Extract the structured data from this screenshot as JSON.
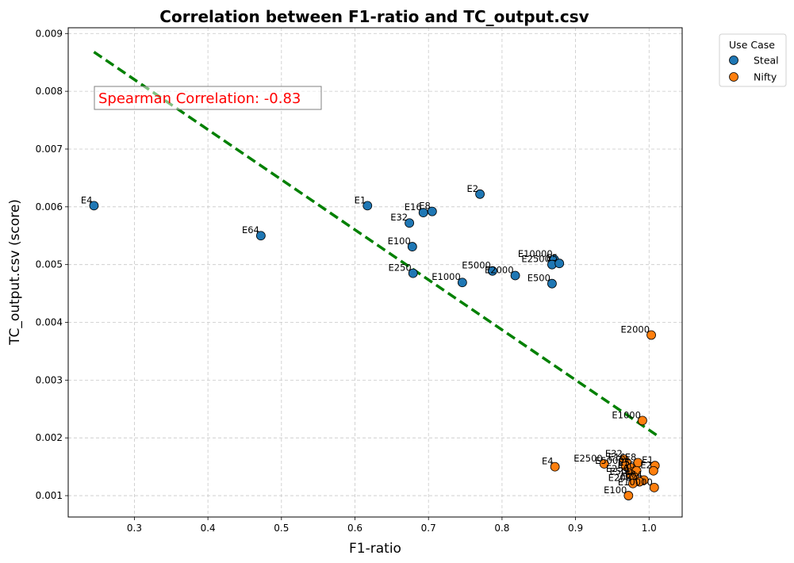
{
  "chart_data": {
    "type": "scatter",
    "title": "Correlation between F1-ratio and TC_output.csv",
    "xlabel": "F1-ratio",
    "ylabel": "TC_output.csv (score)",
    "xlim": [
      0.21,
      1.045
    ],
    "ylim": [
      0.00063,
      0.0091
    ],
    "xticks": [
      0.3,
      0.4,
      0.5,
      0.6,
      0.7,
      0.8,
      0.9,
      1.0
    ],
    "xtick_labels": [
      "0.3",
      "0.4",
      "0.5",
      "0.6",
      "0.7",
      "0.8",
      "0.9",
      "1.0"
    ],
    "yticks": [
      0.001,
      0.002,
      0.003,
      0.004,
      0.005,
      0.006,
      0.007,
      0.008,
      0.009
    ],
    "ytick_labels": [
      "0.001",
      "0.002",
      "0.003",
      "0.004",
      "0.005",
      "0.006",
      "0.007",
      "0.008",
      "0.009"
    ],
    "grid": true,
    "legend": {
      "title": "Use Case",
      "placement": "outside-top-right"
    },
    "annotation": {
      "text": "Spearman Correlation: -0.83",
      "color": "#ff0000"
    },
    "trendline": {
      "x": [
        0.245,
        1.01
      ],
      "y": [
        0.00868,
        0.00205
      ],
      "color": "#008000",
      "style": "dashed"
    },
    "series": [
      {
        "name": "Steal",
        "color": "#1f77b4",
        "points": [
          {
            "label": "E4",
            "x": 0.245,
            "y": 0.00602
          },
          {
            "label": "E64",
            "x": 0.472,
            "y": 0.0055
          },
          {
            "label": "E1",
            "x": 0.617,
            "y": 0.00602
          },
          {
            "label": "E2",
            "x": 0.77,
            "y": 0.00622
          },
          {
            "label": "E16",
            "x": 0.693,
            "y": 0.0059
          },
          {
            "label": "E8",
            "x": 0.705,
            "y": 0.00592
          },
          {
            "label": "E32",
            "x": 0.674,
            "y": 0.00572
          },
          {
            "label": "E100",
            "x": 0.678,
            "y": 0.00531
          },
          {
            "label": "E250",
            "x": 0.679,
            "y": 0.00485
          },
          {
            "label": "E5000",
            "x": 0.787,
            "y": 0.00489
          },
          {
            "label": "E1000",
            "x": 0.746,
            "y": 0.00469
          },
          {
            "label": "E2000",
            "x": 0.818,
            "y": 0.00481
          },
          {
            "label": "E10000",
            "x": 0.871,
            "y": 0.00509
          },
          {
            "label": "E2500",
            "x": 0.868,
            "y": 0.005
          },
          {
            "label": "E5",
            "x": 0.878,
            "y": 0.00502
          },
          {
            "label": "E500",
            "x": 0.868,
            "y": 0.00467
          }
        ]
      },
      {
        "name": "Nifty",
        "color": "#ff7f0e",
        "points": [
          {
            "label": "E2000",
            "x": 1.003,
            "y": 0.00378
          },
          {
            "label": "E1000",
            "x": 0.991,
            "y": 0.0023
          },
          {
            "label": "E4",
            "x": 0.872,
            "y": 0.0015
          },
          {
            "label": "E2500",
            "x": 0.939,
            "y": 0.00155
          },
          {
            "label": "E32",
            "x": 0.966,
            "y": 0.00163
          },
          {
            "label": "E16",
            "x": 0.97,
            "y": 0.00157
          },
          {
            "label": "E8",
            "x": 0.985,
            "y": 0.00157
          },
          {
            "label": "E1",
            "x": 1.008,
            "y": 0.00152
          },
          {
            "label": "E5000",
            "x": 0.968,
            "y": 0.00151
          },
          {
            "label": "E5",
            "x": 0.976,
            "y": 0.00148
          },
          {
            "label": "E10",
            "x": 0.983,
            "y": 0.00143
          },
          {
            "label": "E2",
            "x": 1.006,
            "y": 0.00143
          },
          {
            "label": "E250",
            "x": 0.975,
            "y": 0.00137
          },
          {
            "label": "E500",
            "x": 0.98,
            "y": 0.00132
          },
          {
            "label": "E64",
            "x": 0.993,
            "y": 0.00127
          },
          {
            "label": "E25",
            "x": 0.987,
            "y": 0.00124
          },
          {
            "label": "E200",
            "x": 0.978,
            "y": 0.00121
          },
          {
            "label": "E10000",
            "x": 1.007,
            "y": 0.00114
          },
          {
            "label": "E100",
            "x": 0.972,
            "y": 0.001
          }
        ]
      }
    ]
  }
}
